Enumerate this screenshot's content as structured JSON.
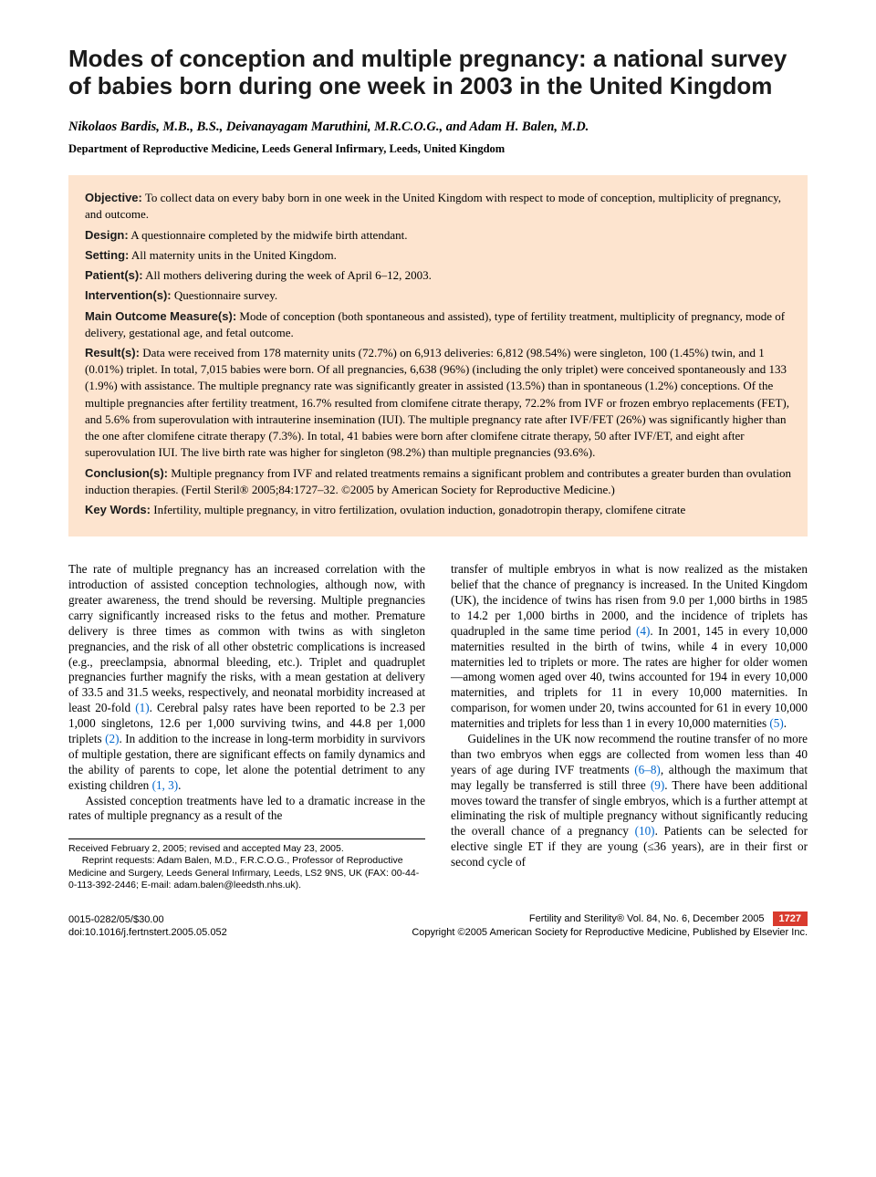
{
  "title": "Modes of conception and multiple pregnancy: a national survey of babies born during one week in 2003 in the United Kingdom",
  "authors": "Nikolaos Bardis, M.B., B.S., Deivanayagam Maruthini, M.R.C.O.G., and Adam H. Balen, M.D.",
  "affiliation": "Department of Reproductive Medicine, Leeds General Infirmary, Leeds, United Kingdom",
  "abstract": {
    "objective": {
      "label": "Objective:",
      "text": " To collect data on every baby born in one week in the United Kingdom with respect to mode of conception, multiplicity of pregnancy, and outcome."
    },
    "design": {
      "label": "Design:",
      "text": " A questionnaire completed by the midwife birth attendant."
    },
    "setting": {
      "label": "Setting:",
      "text": " All maternity units in the United Kingdom."
    },
    "patients": {
      "label": "Patient(s):",
      "text": " All mothers delivering during the week of April 6–12, 2003."
    },
    "interventions": {
      "label": "Intervention(s):",
      "text": " Questionnaire survey."
    },
    "measures": {
      "label": "Main Outcome Measure(s):",
      "text": " Mode of conception (both spontaneous and assisted), type of fertility treatment, multiplicity of pregnancy, mode of delivery, gestational age, and fetal outcome."
    },
    "results": {
      "label": "Result(s):",
      "text": " Data were received from 178 maternity units (72.7%) on 6,913 deliveries: 6,812 (98.54%) were singleton, 100 (1.45%) twin, and 1 (0.01%) triplet. In total, 7,015 babies were born. Of all pregnancies, 6,638 (96%) (including the only triplet) were conceived spontaneously and 133 (1.9%) with assistance. The multiple pregnancy rate was significantly greater in assisted (13.5%) than in spontaneous (1.2%) conceptions. Of the multiple pregnancies after fertility treatment, 16.7% resulted from clomifene citrate therapy, 72.2% from IVF or frozen embryo replacements (FET), and 5.6% from superovulation with intrauterine insemination (IUI). The multiple pregnancy rate after IVF/FET (26%) was significantly higher than the one after clomifene citrate therapy (7.3%). In total, 41 babies were born after clomifene citrate therapy, 50 after IVF/ET, and eight after superovulation IUI. The live birth rate was higher for singleton (98.2%) than multiple pregnancies (93.6%)."
    },
    "conclusions": {
      "label": "Conclusion(s):",
      "text": " Multiple pregnancy from IVF and related treatments remains a significant problem and contributes a greater burden than ovulation induction therapies. (Fertil Steril® 2005;84:1727–32. ©2005 by American Society for Reproductive Medicine.)"
    },
    "keywords": {
      "label": "Key Words:",
      "text": " Infertility, multiple pregnancy, in vitro fertilization, ovulation induction, gonadotropin therapy, clomifene citrate"
    }
  },
  "body": {
    "p1a": "The rate of multiple pregnancy has an increased correlation with the introduction of assisted conception technologies, although now, with greater awareness, the trend should be reversing. Multiple pregnancies carry significantly increased risks to the fetus and mother. Premature delivery is three times as common with twins as with singleton pregnancies, and the risk of all other obstetric complications is increased (e.g., preeclampsia, abnormal bleeding, etc.). Triplet and quadruplet pregnancies further magnify the risks, with a mean gestation at delivery of 33.5 and 31.5 weeks, respectively, and neonatal morbidity increased at least 20-fold ",
    "r1": "(1)",
    "p1b": ". Cerebral palsy rates have been reported to be 2.3 per 1,000 singletons, 12.6 per 1,000 surviving twins, and 44.8 per 1,000 triplets ",
    "r2": "(2)",
    "p1c": ". In addition to the increase in long-term morbidity in survivors of multiple gestation, there are significant effects on family dynamics and the ability of parents to cope, let alone the potential detriment to any existing children ",
    "r13": "(1, 3)",
    "p1d": ".",
    "p2": "Assisted conception treatments have led to a dramatic increase in the rates of multiple pregnancy as a result of the",
    "p3a": "transfer of multiple embryos in what is now realized as the mistaken belief that the chance of pregnancy is increased. In the United Kingdom (UK), the incidence of twins has risen from 9.0 per 1,000 births in 1985 to 14.2 per 1,000 births in 2000, and the incidence of triplets has quadrupled in the same time period ",
    "r4": "(4)",
    "p3b": ". In 2001, 145 in every 10,000 maternities resulted in the birth of twins, while 4 in every 10,000 maternities led to triplets or more. The rates are higher for older women—among women aged over 40, twins accounted for 194 in every 10,000 maternities, and triplets for 11 in every 10,000 maternities. In comparison, for women under 20, twins accounted for 61 in every 10,000 maternities and triplets for less than 1 in every 10,000 maternities ",
    "r5": "(5)",
    "p3c": ".",
    "p4a": "Guidelines in the UK now recommend the routine transfer of no more than two embryos when eggs are collected from women less than 40 years of age during IVF treatments ",
    "r68": "(6–8)",
    "p4b": ", although the maximum that may legally be transferred is still three ",
    "r9": "(9)",
    "p4c": ". There have been additional moves toward the transfer of single embryos, which is a further attempt at eliminating the risk of multiple pregnancy without significantly reducing the overall chance of a pregnancy ",
    "r10": "(10)",
    "p4d": ". Patients can be selected for elective single ET if they are young (≤36 years), are in their first or second cycle of"
  },
  "received": {
    "line1": "Received February 2, 2005; revised and accepted May 23, 2005.",
    "line2": "Reprint requests: Adam Balen, M.D., F.R.C.O.G., Professor of Reproductive Medicine and Surgery, Leeds General Infirmary, Leeds, LS2 9NS, UK (FAX: 00-44-0-113-392-2446; E-mail: adam.balen@leedsth.nhs.uk)."
  },
  "footer": {
    "left1": "0015-0282/05/$30.00",
    "left2": "doi:10.1016/j.fertnstert.2005.05.052",
    "right1": "Fertility and Sterility® Vol. 84, No. 6, December 2005",
    "right2": "Copyright ©2005 American Society for Reproductive Medicine, Published by Elsevier Inc.",
    "page": "1727"
  },
  "colors": {
    "abstract_bg": "#fde4cf",
    "link": "#0066cc",
    "badge_bg": "#d93b2e",
    "badge_fg": "#ffffff"
  }
}
